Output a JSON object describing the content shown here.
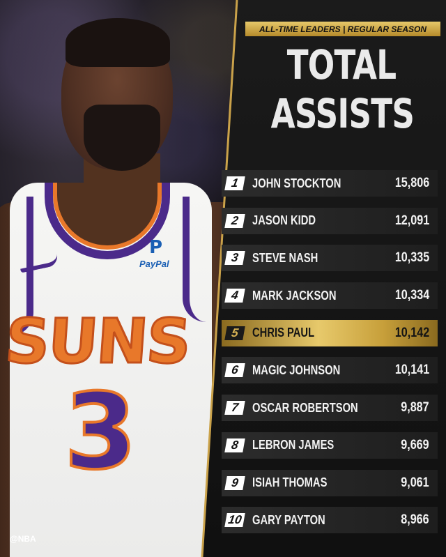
{
  "banner": "ALL-TIME LEADERS | REGULAR SEASON",
  "title_line1": "TOTAL",
  "title_line2": "ASSISTS",
  "jersey": {
    "team": "SUNS",
    "number": "3",
    "sponsor": "PayPal"
  },
  "watermark": "@NBA",
  "colors": {
    "gold": "#d9b455",
    "purple": "#4b2a8a",
    "orange": "#e8782a"
  },
  "leaders": [
    {
      "rank": "1",
      "name": "JOHN STOCKTON",
      "value": "15,806"
    },
    {
      "rank": "2",
      "name": "JASON KIDD",
      "value": "12,091"
    },
    {
      "rank": "3",
      "name": "STEVE NASH",
      "value": "10,335"
    },
    {
      "rank": "4",
      "name": "MARK JACKSON",
      "value": "10,334"
    },
    {
      "rank": "5",
      "name": "CHRIS PAUL",
      "value": "10,142"
    },
    {
      "rank": "6",
      "name": "MAGIC JOHNSON",
      "value": "10,141"
    },
    {
      "rank": "7",
      "name": "OSCAR ROBERTSON",
      "value": "9,887"
    },
    {
      "rank": "8",
      "name": "LEBRON JAMES",
      "value": "9,669"
    },
    {
      "rank": "9",
      "name": "ISIAH THOMAS",
      "value": "9,061"
    },
    {
      "rank": "10",
      "name": "GARY PAYTON",
      "value": "8,966"
    }
  ]
}
